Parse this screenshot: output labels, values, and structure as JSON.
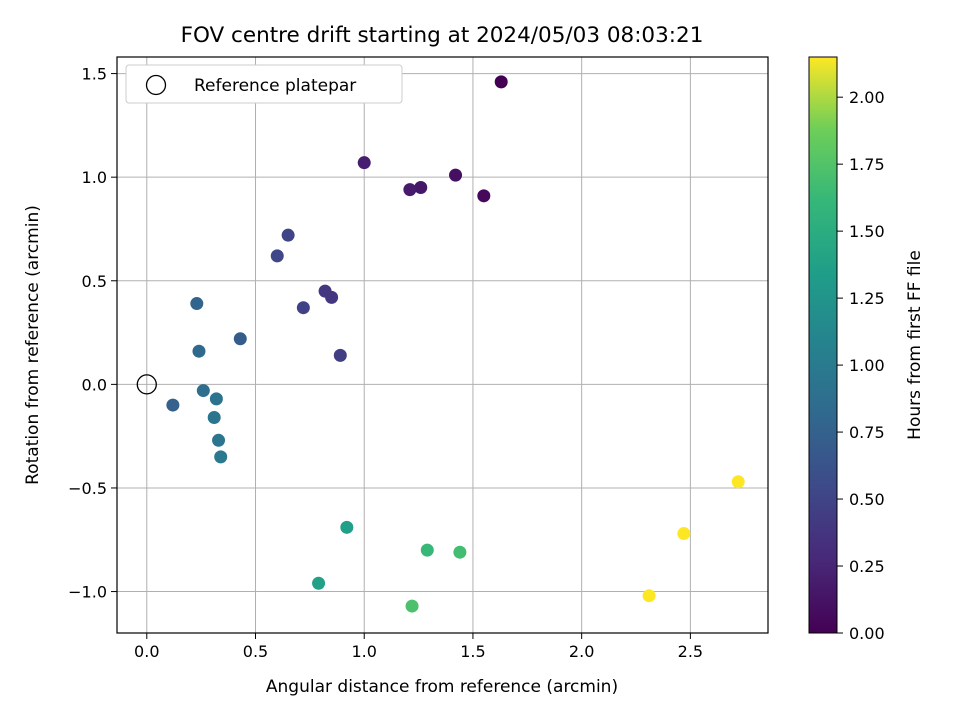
{
  "chart_data": {
    "type": "scatter",
    "title": "FOV centre drift starting at 2024/05/03 08:03:21",
    "xlabel": "Angular distance from reference (arcmin)",
    "ylabel": "Rotation from reference (arcmin)",
    "xlim": [
      -0.137,
      2.857
    ],
    "ylim": [
      -1.2,
      1.58
    ],
    "x_ticks": [
      0.0,
      0.5,
      1.0,
      1.5,
      2.0,
      2.5
    ],
    "x_tick_labels": [
      "0.0",
      "0.5",
      "1.0",
      "1.5",
      "2.0",
      "2.5"
    ],
    "y_ticks": [
      -1.0,
      -0.5,
      0.0,
      0.5,
      1.0,
      1.5
    ],
    "y_tick_labels": [
      "−1.0",
      "−0.5",
      "0.0",
      "0.5",
      "1.0",
      "1.5"
    ],
    "grid": true,
    "legend": {
      "placement": "top-left",
      "entries": [
        "Reference platepar"
      ]
    },
    "reference_point": {
      "x": 0.0,
      "y": 0.0
    },
    "colorbar": {
      "label": "Hours from first FF file",
      "range": [
        0.0,
        2.15
      ],
      "ticks": [
        0.0,
        0.25,
        0.5,
        0.75,
        1.0,
        1.25,
        1.5,
        1.75,
        2.0
      ],
      "tick_labels": [
        "0.00",
        "0.25",
        "0.50",
        "0.75",
        "1.00",
        "1.25",
        "1.50",
        "1.75",
        "2.00"
      ],
      "colormap": "viridis"
    },
    "points": [
      {
        "x": 1.63,
        "y": 1.46,
        "c": 0.0
      },
      {
        "x": 1.55,
        "y": 0.91,
        "c": 0.05
      },
      {
        "x": 1.42,
        "y": 1.01,
        "c": 0.1
      },
      {
        "x": 1.26,
        "y": 0.95,
        "c": 0.15
      },
      {
        "x": 1.21,
        "y": 0.94,
        "c": 0.18
      },
      {
        "x": 1.0,
        "y": 1.07,
        "c": 0.2
      },
      {
        "x": 0.85,
        "y": 0.42,
        "c": 0.38
      },
      {
        "x": 0.82,
        "y": 0.45,
        "c": 0.4
      },
      {
        "x": 0.89,
        "y": 0.14,
        "c": 0.45
      },
      {
        "x": 0.72,
        "y": 0.37,
        "c": 0.48
      },
      {
        "x": 0.65,
        "y": 0.72,
        "c": 0.5
      },
      {
        "x": 0.6,
        "y": 0.62,
        "c": 0.52
      },
      {
        "x": 0.43,
        "y": 0.22,
        "c": 0.7
      },
      {
        "x": 0.23,
        "y": 0.39,
        "c": 0.78
      },
      {
        "x": 0.24,
        "y": 0.16,
        "c": 0.82
      },
      {
        "x": 0.12,
        "y": -0.1,
        "c": 0.75
      },
      {
        "x": 0.26,
        "y": -0.03,
        "c": 0.88
      },
      {
        "x": 0.32,
        "y": -0.07,
        "c": 0.92
      },
      {
        "x": 0.31,
        "y": -0.16,
        "c": 0.94
      },
      {
        "x": 0.33,
        "y": -0.27,
        "c": 0.95
      },
      {
        "x": 0.34,
        "y": -0.35,
        "c": 0.98
      },
      {
        "x": 0.92,
        "y": -0.69,
        "c": 1.35
      },
      {
        "x": 0.79,
        "y": -0.96,
        "c": 1.38
      },
      {
        "x": 1.29,
        "y": -0.8,
        "c": 1.62
      },
      {
        "x": 1.44,
        "y": -0.81,
        "c": 1.68
      },
      {
        "x": 1.22,
        "y": -1.07,
        "c": 1.72
      },
      {
        "x": 2.31,
        "y": -1.02,
        "c": 2.15
      },
      {
        "x": 2.47,
        "y": -0.72,
        "c": 2.15
      },
      {
        "x": 2.72,
        "y": -0.47,
        "c": 2.15
      }
    ]
  }
}
